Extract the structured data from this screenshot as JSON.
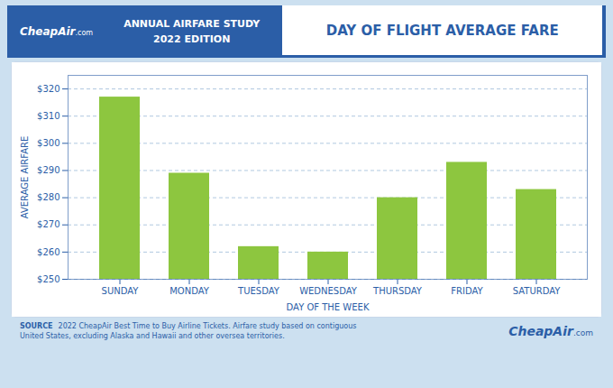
{
  "chart_data": {
    "type": "bar",
    "title": "DAY OF FLIGHT AVERAGE FARE",
    "xlabel": "DAY OF THE WEEK",
    "ylabel": "AVERAGE AIRFARE",
    "categories": [
      "SUNDAY",
      "MONDAY",
      "TUESDAY",
      "WEDNESDAY",
      "THURSDAY",
      "FRIDAY",
      "SATURDAY"
    ],
    "values": [
      317,
      289,
      262,
      260,
      280,
      293,
      283
    ],
    "color": "#8DC63F",
    "ylim": [
      250,
      325
    ],
    "yticks": [
      {
        "value": 250,
        "label": "$250"
      },
      {
        "value": 260,
        "label": "$260"
      },
      {
        "value": 270,
        "label": "$270"
      },
      {
        "value": 280,
        "label": "$280"
      },
      {
        "value": 290,
        "label": "$290"
      },
      {
        "value": 300,
        "label": "$300"
      },
      {
        "value": 310,
        "label": "$310"
      },
      {
        "value": 320,
        "label": "$320"
      }
    ],
    "grid": true,
    "annotations": [
      "ANNUAL AIRFARE STUDY",
      "2022 EDITION",
      "CheapAir",
      ".com",
      "SOURCE",
      "2022 CheapAir Best Time to Buy Airline Tickets. Airfare study based on contiguous\nUnited States, excluding Alaska and Hawaii and other oversea territories.",
      "CheapAir",
      ".com"
    ]
  }
}
